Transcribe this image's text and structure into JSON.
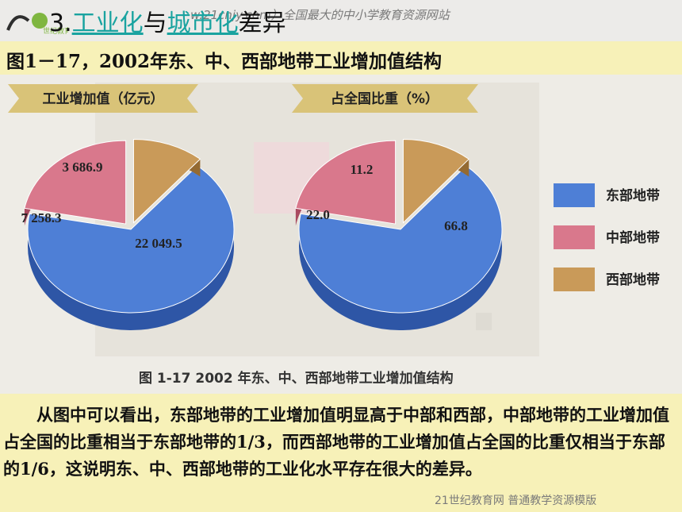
{
  "header": {
    "section_number": "3.",
    "title_link1": "工业化",
    "title_mid": "与",
    "title_link2": "城市化",
    "title_end": "差异",
    "watermark": "w.21cnjy.com）全国最大的中小学教育资源网站",
    "logo_text": "世纪教育"
  },
  "subtitle": "图1－17，2002年东、中、西部地带工业增加值结构",
  "chart_data": [
    {
      "type": "pie",
      "title": "工业增加值（亿元）",
      "categories": [
        "东部地带",
        "中部地带",
        "西部地带"
      ],
      "values": [
        22049.5,
        7258.3,
        3686.9
      ],
      "value_labels": [
        "22 049.5",
        "7 258.3",
        "3 686.9"
      ]
    },
    {
      "type": "pie",
      "title": "占全国比重（%）",
      "categories": [
        "东部地带",
        "中部地带",
        "西部地带"
      ],
      "values": [
        66.8,
        22.0,
        11.2
      ],
      "value_labels": [
        "66.8",
        "22.0",
        "11.2"
      ]
    }
  ],
  "legend": [
    {
      "label": "东部地带",
      "color": "#4e7fd6"
    },
    {
      "label": "中部地带",
      "color": "#d9788c"
    },
    {
      "label": "西部地带",
      "color": "#c99a59"
    }
  ],
  "figure_caption": "图 1-17  2002 年东、中、西部地带工业增加值结构",
  "paragraph": "从图中可以看出，东部地带的工业增加值明显高于中部和西部，中部地带的工业增加值占全国的比重相当于东部地带的1/3，而西部地带的工业增加值占全国的比重仅相当于东部的1/6，这说明东、中、西部地带的工业化水平存在很大的差异。",
  "footer": "21世纪教育网    普通教学资源模版"
}
